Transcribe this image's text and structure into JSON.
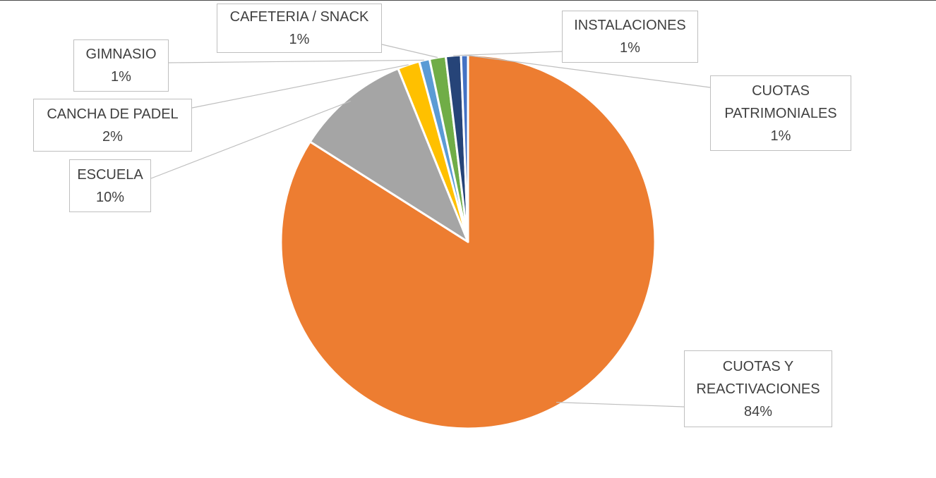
{
  "chart_data": {
    "type": "pie",
    "slices": [
      {
        "label": "CUOTAS Y REACTIVACIONES",
        "label_lines": [
          "CUOTAS Y",
          "REACTIVACIONES"
        ],
        "value_label": "84%",
        "value": 84.0,
        "color": "#ED7D31"
      },
      {
        "label": "ESCUELA",
        "label_lines": [
          "ESCUELA"
        ],
        "value_label": "10%",
        "value": 9.9,
        "color": "#A5A5A5"
      },
      {
        "label": "CANCHA DE PADEL",
        "label_lines": [
          "CANCHA DE PADEL"
        ],
        "value_label": "2%",
        "value": 1.9,
        "color": "#FFC000"
      },
      {
        "label": "GIMNASIO",
        "label_lines": [
          "GIMNASIO"
        ],
        "value_label": "1%",
        "value": 0.9,
        "color": "#5B9BD5"
      },
      {
        "label": "CAFETERIA / SNACK",
        "label_lines": [
          "CAFETERIA / SNACK"
        ],
        "value_label": "1%",
        "value": 1.4,
        "color": "#70AD47"
      },
      {
        "label": "INSTALACIONES",
        "label_lines": [
          "INSTALACIONES"
        ],
        "value_label": "1%",
        "value": 1.3,
        "color": "#264478"
      },
      {
        "label": "CUOTAS PATRIMONIALES",
        "label_lines": [
          "CUOTAS",
          "PATRIMONIALES"
        ],
        "value_label": "1%",
        "value": 0.6,
        "color": "#4472C4"
      }
    ],
    "title": "",
    "legend": "none",
    "data_labels": "callouts"
  }
}
